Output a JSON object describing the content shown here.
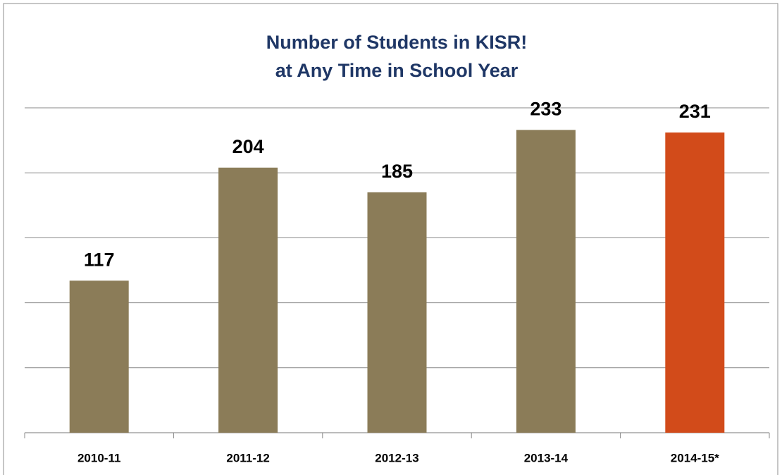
{
  "chart_data": {
    "type": "bar",
    "title": [
      "Number of Students in KISR!",
      "at Any Time in School Year"
    ],
    "categories": [
      "2010-11",
      "2011-12",
      "2012-13",
      "2013-14",
      "2014-15*"
    ],
    "values": [
      117,
      204,
      185,
      233,
      231
    ],
    "colors": [
      "#8b7c58",
      "#8b7c58",
      "#8b7c58",
      "#8b7c58",
      "#d24b1a"
    ],
    "ylim": [
      0,
      250
    ],
    "yticks": [
      0,
      50,
      100,
      150,
      200,
      250
    ],
    "grid": true
  }
}
